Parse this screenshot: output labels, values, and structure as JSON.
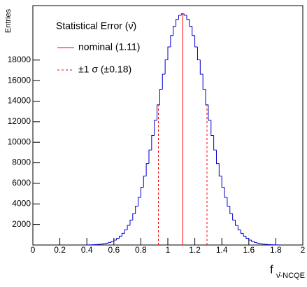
{
  "chart_data": {
    "type": "histogram",
    "ylabel": "Entries",
    "xlabel": {
      "main": "f",
      "sub": "ν̄-NCQE"
    },
    "legend_title": "Statistical Error (ν̄)",
    "bins": [
      0.4,
      0.42,
      0.44,
      0.46,
      0.48,
      0.5,
      0.52,
      0.54,
      0.56,
      0.58,
      0.6,
      0.62,
      0.64,
      0.66,
      0.68,
      0.7,
      0.72,
      0.74,
      0.76,
      0.78,
      0.8,
      0.82,
      0.84,
      0.86,
      0.88,
      0.9,
      0.92,
      0.94,
      0.96,
      0.98,
      1.0,
      1.02,
      1.04,
      1.06,
      1.08,
      1.1,
      1.12,
      1.14,
      1.16,
      1.18,
      1.2,
      1.22,
      1.24,
      1.26,
      1.28,
      1.3,
      1.32,
      1.34,
      1.36,
      1.38,
      1.4,
      1.42,
      1.44,
      1.46,
      1.48,
      1.5,
      1.52,
      1.54,
      1.56,
      1.58,
      1.6,
      1.62,
      1.64,
      1.66,
      1.68,
      1.7,
      1.72,
      1.74,
      1.76,
      1.78,
      1.8,
      1.82
    ],
    "values": [
      12,
      18,
      27,
      40,
      60,
      87,
      125,
      178,
      250,
      347,
      475,
      642,
      859,
      1134,
      1479,
      1905,
      2424,
      3045,
      3780,
      4634,
      5610,
      6710,
      7928,
      9250,
      10661,
      12136,
      13647,
      15156,
      16627,
      18017,
      19283,
      20384,
      21285,
      21951,
      22361,
      22500,
      22361,
      21951,
      21285,
      20384,
      19283,
      18017,
      16627,
      15156,
      13647,
      12136,
      10661,
      9250,
      7928,
      6710,
      5610,
      4634,
      3780,
      3045,
      2424,
      1905,
      1479,
      1134,
      859,
      642,
      475,
      347,
      250,
      178,
      125,
      87,
      60,
      40,
      27,
      18,
      12
    ],
    "color": "#0000cc",
    "lines": [
      {
        "name": "nominal (1.11)",
        "x": [
          1.11
        ],
        "color": "#ff0000",
        "style": "solid"
      },
      {
        "name": "±1 σ (±0.18)",
        "x": [
          0.93,
          1.29
        ],
        "color": "#ff0000",
        "style": "dashed"
      }
    ],
    "xlim": [
      0,
      2
    ],
    "xticks": [
      0,
      0.2,
      0.4,
      0.6,
      0.8,
      1,
      1.2,
      1.4,
      1.6,
      1.8,
      2
    ],
    "ylim": [
      0,
      23300
    ],
    "yticks": [
      2000,
      4000,
      6000,
      8000,
      10000,
      12000,
      14000,
      16000,
      18000
    ]
  }
}
